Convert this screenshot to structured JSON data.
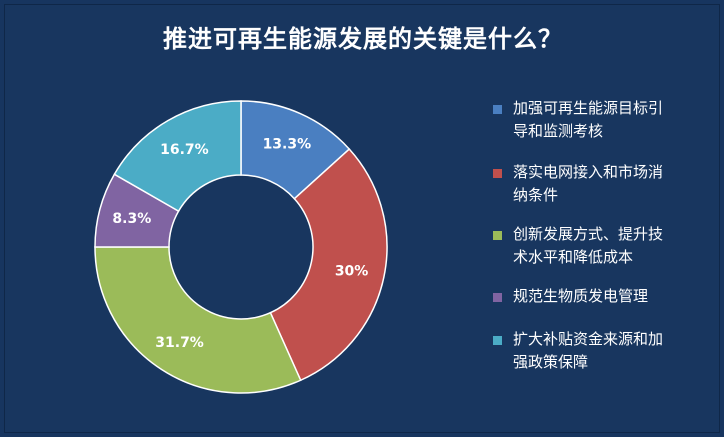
{
  "chart_data": {
    "type": "pie",
    "title": "推进可再生能源发展的关键是什么？",
    "categories": [
      "加强可再生能源目标引导和监测考核",
      "落实电网接入和市场消纳条件",
      "创新发展方式、提升技术水平和降低成本",
      "规范生物质发电管理",
      "扩大补贴资金来源和加强政策保障"
    ],
    "values": [
      13.3,
      30,
      31.7,
      8.3,
      16.7
    ],
    "data_labels": [
      "13.3%",
      "30%",
      "31.7%",
      "8.3%",
      "16.7%"
    ],
    "colors": [
      "#4a7fc1",
      "#c0504d",
      "#9bbb59",
      "#8064a2",
      "#4bacc6"
    ],
    "legend_lines": [
      [
        "加强可再生能源目标引",
        "导和监测考核"
      ],
      [
        "落实电网接入和市场消",
        "纳条件"
      ],
      [
        "创新发展方式、提升技",
        "术水平和降低成本"
      ],
      [
        "规范生物质发电管理"
      ],
      [
        "扩大补贴资金来源和加",
        "强政策保障"
      ]
    ],
    "legend_position": "right",
    "donut": true
  }
}
